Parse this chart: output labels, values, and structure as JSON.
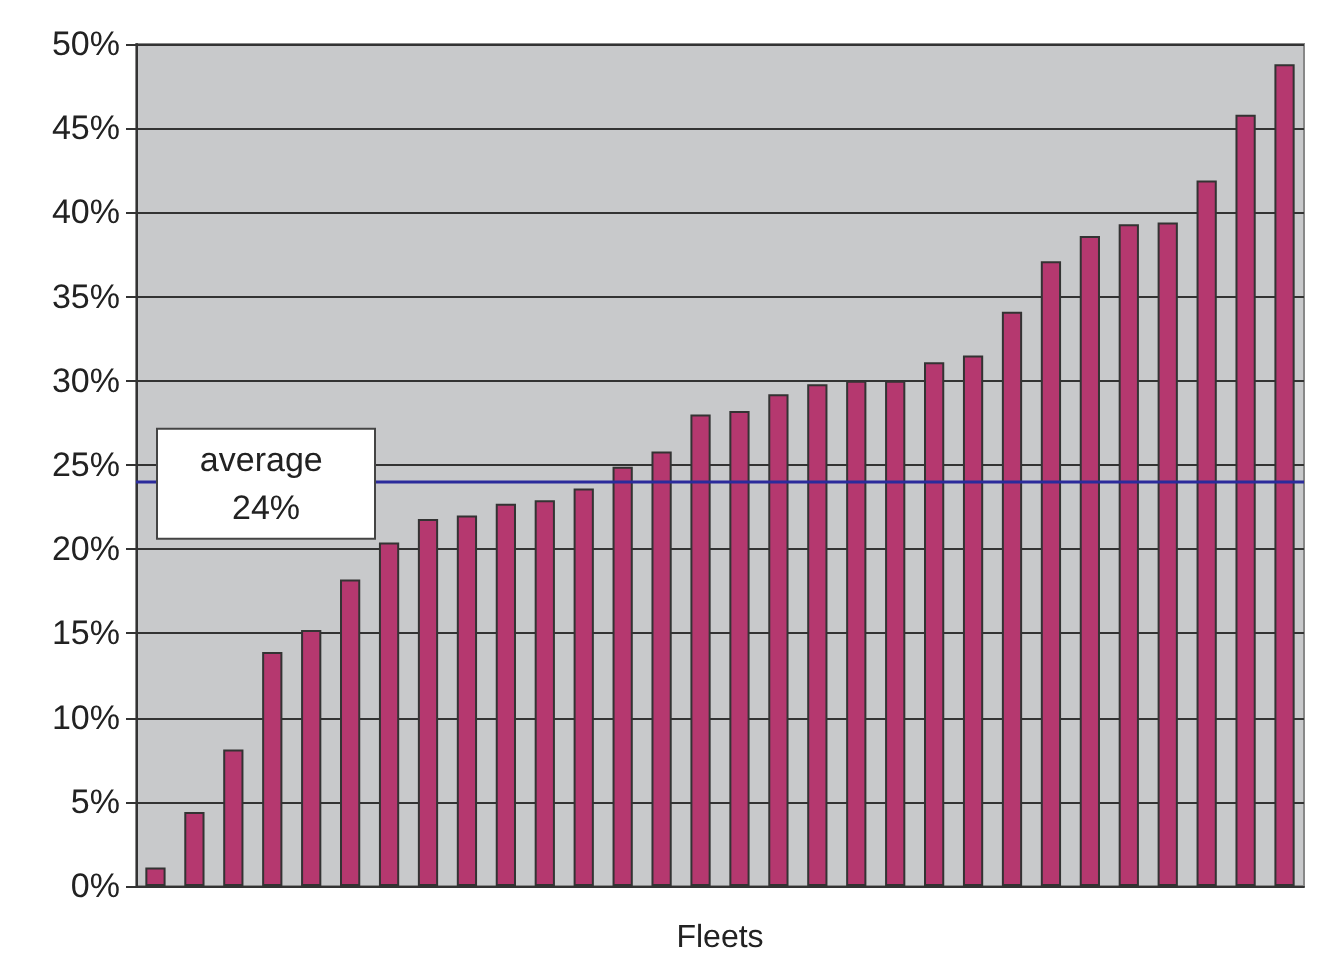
{
  "chart_data": {
    "type": "bar",
    "xlabel": "Fleets",
    "categories": [
      null,
      null,
      null,
      null,
      null,
      null,
      null,
      null,
      null,
      null,
      null,
      null,
      null,
      null,
      null,
      null,
      null,
      null,
      null,
      null,
      null,
      null,
      null,
      null,
      null,
      null,
      null,
      null,
      null,
      null
    ],
    "values": [
      1.1,
      4.4,
      8.1,
      13.9,
      15.2,
      18.2,
      20.4,
      21.8,
      22.0,
      22.7,
      22.9,
      23.6,
      24.9,
      25.8,
      28.0,
      28.2,
      29.2,
      29.8,
      30.0,
      30.0,
      31.1,
      31.5,
      34.1,
      37.1,
      38.6,
      39.3,
      39.4,
      41.9,
      45.8,
      48.8
    ],
    "color": "#b5386f",
    "ylim": [
      0,
      50
    ],
    "yticks": [
      {
        "value": 0,
        "label": "0%"
      },
      {
        "value": 5,
        "label": "5%"
      },
      {
        "value": 10,
        "label": "10%"
      },
      {
        "value": 15,
        "label": "15%"
      },
      {
        "value": 20,
        "label": "20%"
      },
      {
        "value": 25,
        "label": "25%"
      },
      {
        "value": 30,
        "label": "30%"
      },
      {
        "value": 35,
        "label": "35%"
      },
      {
        "value": 40,
        "label": "40%"
      },
      {
        "value": 45,
        "label": "45%"
      },
      {
        "value": 50,
        "label": "50%"
      }
    ],
    "grid": "y",
    "ref_lines": [
      {
        "axis": "y",
        "value": 24,
        "label": "average 24%",
        "color": "#2b2b9b"
      }
    ]
  }
}
